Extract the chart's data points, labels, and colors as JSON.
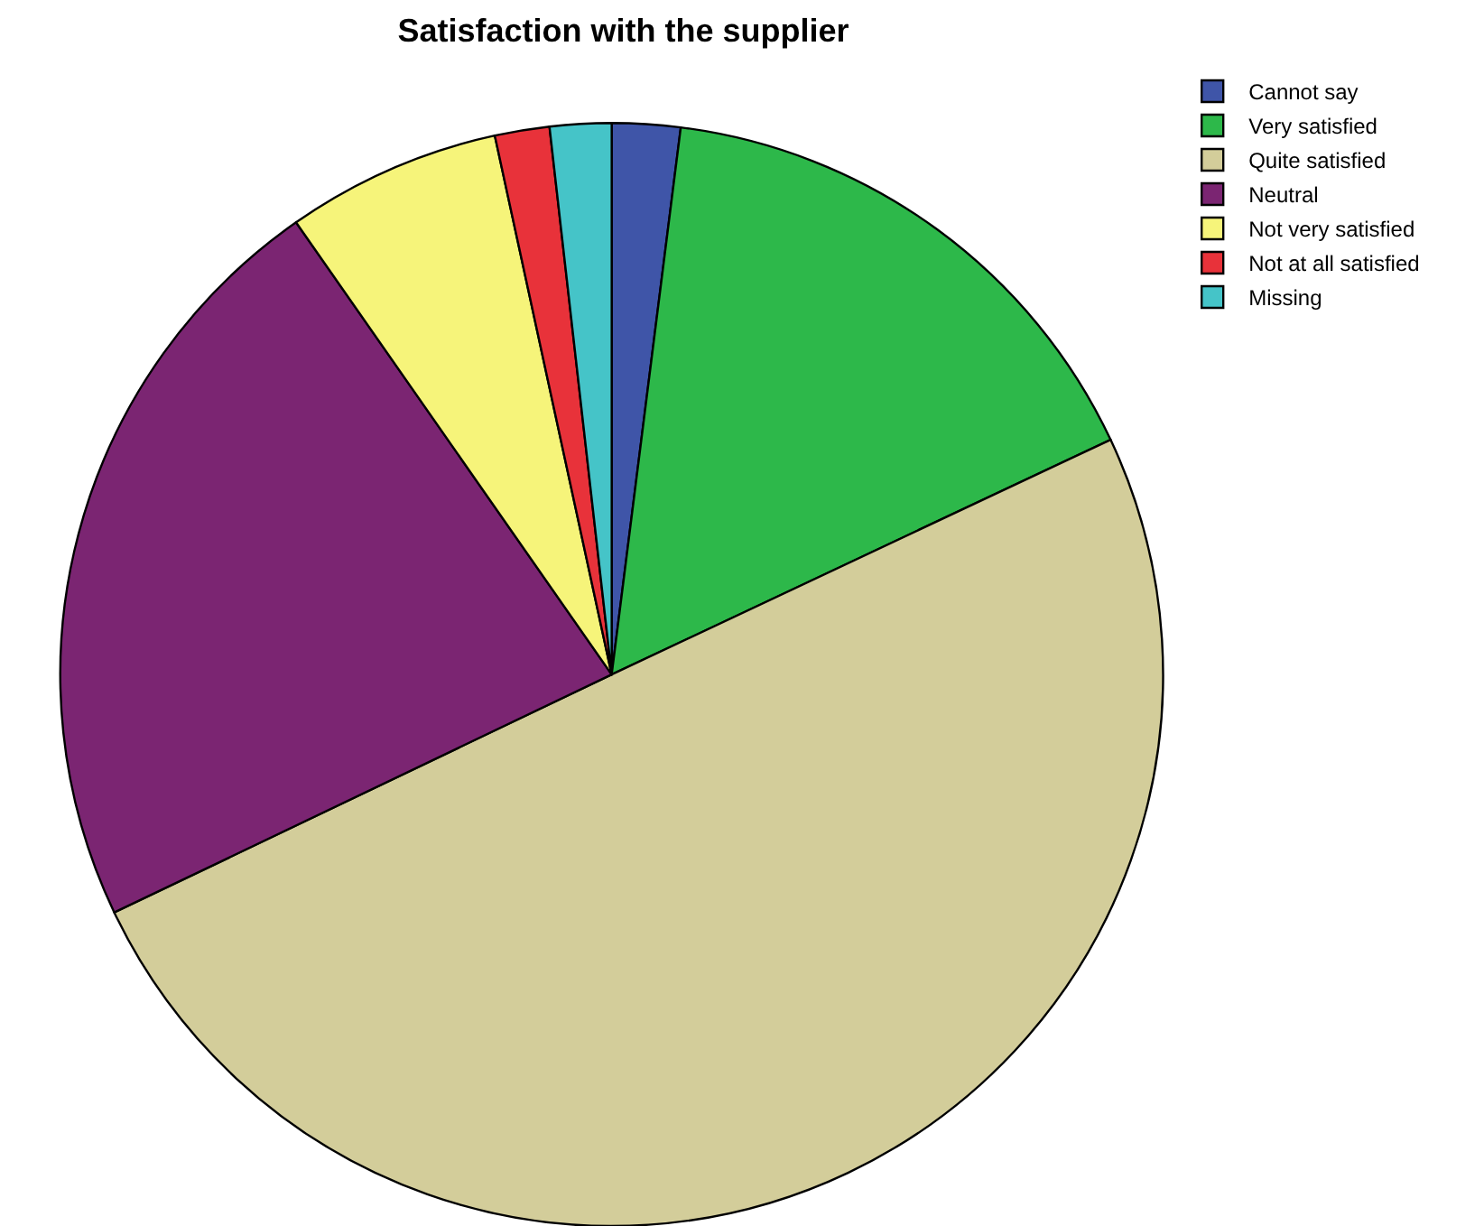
{
  "chart_data": {
    "type": "pie",
    "title": "Satisfaction with the supplier",
    "categories": [
      "Cannot say",
      "Very satisfied",
      "Quite satisfied",
      "Neutral",
      "Not very satisfied",
      "Not at all satisfied",
      "Missing"
    ],
    "values": [
      2.0,
      16.0,
      49.9,
      22.4,
      6.3,
      1.6,
      1.8
    ],
    "colors": [
      "#3f55a8",
      "#2db84a",
      "#d3cd9a",
      "#7b2572",
      "#f6f47a",
      "#e8323a",
      "#45c4c8"
    ],
    "legend": "top right"
  }
}
